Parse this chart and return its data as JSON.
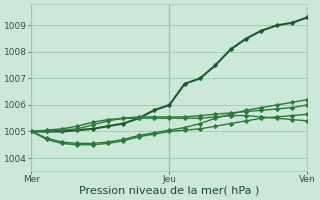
{
  "background_color": "#cce8d8",
  "plot_bg_color": "#cce8d8",
  "grid_color": "#99ccb0",
  "line_color_dark": "#1a5c2a",
  "line_color_med": "#2a7a3a",
  "xlabel": "Pression niveau de la mer( hPa )",
  "yticks": [
    1004,
    1005,
    1006,
    1007,
    1008,
    1009
  ],
  "ylim": [
    1003.5,
    1009.8
  ],
  "xlim": [
    0,
    48
  ],
  "xtick_positions": [
    0,
    24,
    48
  ],
  "xtick_labels": [
    "Mer",
    "Jeu",
    "Ven"
  ],
  "series": [
    [
      1005.0,
      1005.0,
      1005.0,
      1005.05,
      1005.1,
      1005.2,
      1005.3,
      1005.5,
      1005.8,
      1006.0,
      1006.8,
      1007.0,
      1007.5,
      1008.1,
      1008.5,
      1008.8,
      1009.0,
      1009.1,
      1009.3
    ],
    [
      1005.0,
      1004.7,
      1004.55,
      1004.5,
      1004.5,
      1004.55,
      1004.65,
      1004.8,
      1004.9,
      1005.0,
      1005.05,
      1005.1,
      1005.2,
      1005.3,
      1005.4,
      1005.5,
      1005.55,
      1005.6,
      1005.65
    ],
    [
      1005.0,
      1004.75,
      1004.6,
      1004.55,
      1004.55,
      1004.6,
      1004.7,
      1004.85,
      1004.95,
      1005.05,
      1005.15,
      1005.3,
      1005.5,
      1005.65,
      1005.8,
      1005.9,
      1006.0,
      1006.1,
      1006.2
    ],
    [
      1005.0,
      1005.05,
      1005.1,
      1005.2,
      1005.35,
      1005.45,
      1005.5,
      1005.5,
      1005.5,
      1005.5,
      1005.5,
      1005.5,
      1005.55,
      1005.6,
      1005.6,
      1005.55,
      1005.5,
      1005.45,
      1005.4
    ],
    [
      1005.0,
      1005.0,
      1005.05,
      1005.1,
      1005.25,
      1005.4,
      1005.5,
      1005.55,
      1005.55,
      1005.55,
      1005.55,
      1005.6,
      1005.65,
      1005.7,
      1005.75,
      1005.8,
      1005.85,
      1005.9,
      1006.0
    ]
  ],
  "marker": "D",
  "markersize": 2.2,
  "linewidth_main": 1.5,
  "linewidth_other": 1.0,
  "tick_fontsize": 6.5,
  "xlabel_fontsize": 8.0,
  "tick_color": "#2a5a3a",
  "xlabel_color": "#1a4a2a"
}
